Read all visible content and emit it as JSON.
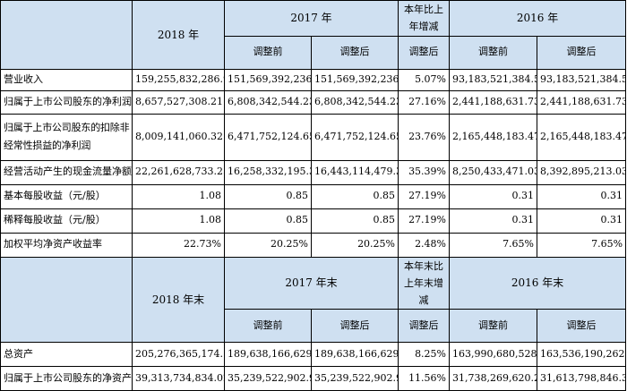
{
  "header1": {
    "col_2018": "2018 年",
    "col_2017": "2017 年",
    "col_change": "本年比上年增减",
    "col_2016": "2016 年",
    "before": "调整前",
    "after": "调整后",
    "change_after": "调整后"
  },
  "rows1": [
    {
      "label": "营业收入",
      "v2018": "159,255,832,286.92",
      "v2017b": "151,569,392,236.63",
      "v2017a": "151,569,392,236.63",
      "chg": "5.07%",
      "v2016b": "93,183,521,384.54",
      "v2016a": "93,183,521,384.54"
    },
    {
      "label": "归属于上市公司股东的净利润",
      "v2018": "8,657,527,308.21",
      "v2017b": "6,808,342,544.23",
      "v2017a": "6,808,342,544.23",
      "chg": "27.16%",
      "v2016b": "2,441,188,631.73",
      "v2016a": "2,441,188,631.73"
    },
    {
      "label": "归属于上市公司股东的扣除非经常性损益的净利润",
      "v2018": "8,009,141,060.32",
      "v2017b": "6,471,752,124.65",
      "v2017a": "6,471,752,124.65",
      "chg": "23.76%",
      "v2016b": "2,165,448,183.47",
      "v2016a": "2,165,448,183.47"
    },
    {
      "label": "经营活动产生的现金流量净额",
      "v2018": "22,261,628,733.25",
      "v2017b": "16,258,332,195.39",
      "v2017a": "16,443,114,479.39",
      "chg": "35.39%",
      "v2016b": "8,250,433,471.03",
      "v2016a": "8,392,895,213.03"
    },
    {
      "label": "基本每股收益（元/股）",
      "v2018": "1.08",
      "v2017b": "0.85",
      "v2017a": "0.85",
      "chg": "27.19%",
      "v2016b": "0.31",
      "v2016a": "0.31"
    },
    {
      "label": "稀释每股收益（元/股）",
      "v2018": "1.08",
      "v2017b": "0.85",
      "v2017a": "0.85",
      "chg": "27.19%",
      "v2016b": "0.31",
      "v2016a": "0.31"
    },
    {
      "label": "加权平均净资产收益率",
      "v2018": "22.73%",
      "v2017b": "20.25%",
      "v2017a": "20.25%",
      "chg": "2.48%",
      "v2016b": "7.65%",
      "v2016a": "7.65%"
    }
  ],
  "header2": {
    "col_2018": "2018 年末",
    "col_2017": "2017 年末",
    "col_change": "本年末比上年末增减",
    "col_2016": "2016 年末",
    "before": "调整前",
    "after": "调整后",
    "change_after": "调整后"
  },
  "rows2": [
    {
      "label": "总资产",
      "v2018": "205,276,365,174.18",
      "v2017b": "189,638,166,629.52",
      "v2017a": "189,638,166,629.52",
      "chg": "8.25%",
      "v2016b": "163,990,680,528.94",
      "v2016a": "163,536,190,262.14"
    },
    {
      "label": "归属于上市公司股东的净资产",
      "v2018": "39,313,734,834.02",
      "v2017b": "35,239,522,902.94",
      "v2017a": "35,239,522,902.94",
      "chg": "11.56%",
      "v2016b": "31,738,269,620.22",
      "v2016a": "31,613,798,846.31"
    }
  ]
}
